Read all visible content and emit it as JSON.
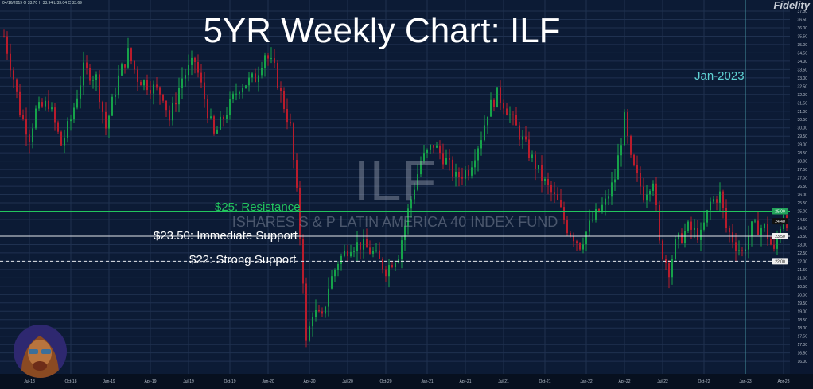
{
  "title": "5YR Weekly Chart: ILF",
  "brand": "Fidelity",
  "ohlc_readout": "04/16/2019  O 33.70  H 33.94  L 33.04  C 33.69",
  "watermark": {
    "symbol": "ILF",
    "name": "ISHARES S & P LATIN AMERICA 40 INDEX FUND"
  },
  "chart_data": {
    "type": "candlestick",
    "title": "5YR Weekly Chart: ILF",
    "interval": "weekly",
    "ylim": [
      15.5,
      37.2
    ],
    "yticks": [
      "37.00",
      "36.50",
      "36.00",
      "35.50",
      "35.00",
      "34.50",
      "34.00",
      "33.50",
      "33.00",
      "32.50",
      "32.00",
      "31.50",
      "31.00",
      "30.50",
      "30.00",
      "29.50",
      "29.00",
      "28.50",
      "28.00",
      "27.50",
      "27.00",
      "26.50",
      "26.00",
      "25.50",
      "25.00",
      "24.50",
      "24.00",
      "23.50",
      "23.00",
      "22.50",
      "22.00",
      "21.50",
      "21.00",
      "20.50",
      "20.00",
      "19.50",
      "19.00",
      "18.50",
      "18.00",
      "17.50",
      "17.00",
      "16.50",
      "16.00"
    ],
    "xticks": [
      {
        "label": "Jul-18",
        "week": 8
      },
      {
        "label": "Oct-18",
        "week": 21
      },
      {
        "label": "Jan-19",
        "week": 33
      },
      {
        "label": "Apr-19",
        "week": 46
      },
      {
        "label": "Jul-19",
        "week": 58
      },
      {
        "label": "Oct-19",
        "week": 71
      },
      {
        "label": "Jan-20",
        "week": 83
      },
      {
        "label": "Apr-20",
        "week": 96
      },
      {
        "label": "Jul-20",
        "week": 108
      },
      {
        "label": "Oct-20",
        "week": 120
      },
      {
        "label": "Jan-21",
        "week": 133
      },
      {
        "label": "Apr-21",
        "week": 145
      },
      {
        "label": "Jul-21",
        "week": 157
      },
      {
        "label": "Oct-21",
        "week": 170
      },
      {
        "label": "Jan-22",
        "week": 183
      },
      {
        "label": "Apr-22",
        "week": 195
      },
      {
        "label": "Jul-22",
        "week": 207
      },
      {
        "label": "Oct-22",
        "week": 220
      },
      {
        "label": "Jan-23",
        "week": 233
      },
      {
        "label": "Apr-23",
        "week": 245
      }
    ],
    "price_path": [
      [
        0,
        35.5
      ],
      [
        3,
        33
      ],
      [
        5,
        31
      ],
      [
        8,
        29.5
      ],
      [
        10,
        31
      ],
      [
        14,
        31.5
      ],
      [
        18,
        29
      ],
      [
        21,
        30.5
      ],
      [
        25,
        33.5
      ],
      [
        29,
        33
      ],
      [
        32,
        30
      ],
      [
        36,
        33
      ],
      [
        39,
        34.5
      ],
      [
        42,
        33
      ],
      [
        46,
        32.5
      ],
      [
        50,
        32
      ],
      [
        52,
        30.5
      ],
      [
        56,
        33
      ],
      [
        60,
        34
      ],
      [
        64,
        31
      ],
      [
        66,
        29.5
      ],
      [
        70,
        31
      ],
      [
        74,
        32.5
      ],
      [
        79,
        33
      ],
      [
        82,
        34.5
      ],
      [
        85,
        33.5
      ],
      [
        87,
        32
      ],
      [
        90,
        30
      ],
      [
        92,
        26
      ],
      [
        94,
        21
      ],
      [
        95,
        17
      ],
      [
        97,
        19
      ],
      [
        100,
        18.5
      ],
      [
        102,
        20.5
      ],
      [
        105,
        22
      ],
      [
        109,
        23
      ],
      [
        112,
        23
      ],
      [
        116,
        22.5
      ],
      [
        120,
        21.5
      ],
      [
        124,
        22.5
      ],
      [
        127,
        25
      ],
      [
        131,
        28
      ],
      [
        135,
        29
      ],
      [
        139,
        28
      ],
      [
        142,
        27
      ],
      [
        146,
        27.5
      ],
      [
        150,
        29.5
      ],
      [
        152,
        31
      ],
      [
        155,
        32
      ],
      [
        157,
        31.5
      ],
      [
        161,
        30
      ],
      [
        165,
        28.5
      ],
      [
        169,
        27
      ],
      [
        174,
        25.5
      ],
      [
        177,
        24
      ],
      [
        181,
        23
      ],
      [
        185,
        24.5
      ],
      [
        189,
        25.5
      ],
      [
        192,
        27
      ],
      [
        195,
        30.5
      ],
      [
        197,
        28
      ],
      [
        201,
        26
      ],
      [
        204,
        27
      ],
      [
        206,
        23
      ],
      [
        209,
        21.5
      ],
      [
        211,
        23
      ],
      [
        215,
        24
      ],
      [
        219,
        23.5
      ],
      [
        222,
        25.5
      ],
      [
        225,
        26
      ],
      [
        227,
        24
      ],
      [
        230,
        23
      ],
      [
        232,
        22.5
      ],
      [
        235,
        24
      ],
      [
        239,
        24
      ],
      [
        242,
        22.5
      ],
      [
        245,
        25
      ],
      [
        246,
        24.4
      ]
    ],
    "levels": [
      {
        "label": "$25: Resistance",
        "price": 25.0,
        "axis_label": "25.00",
        "color": "#22c55e",
        "style": "solid"
      },
      {
        "label": "$23.50: Immediate Support",
        "price": 23.5,
        "axis_label": "23.50",
        "color": "#e5e7eb",
        "style": "solid"
      },
      {
        "label": "$22: Strong Support",
        "price": 22.0,
        "axis_label": "22.00",
        "color": "#e5e7eb",
        "style": "dashed"
      }
    ],
    "last_price_label": "24.40",
    "vertical_marker": {
      "label": "Jan-2023",
      "week": 233,
      "color": "#5fd3d3"
    },
    "colors": {
      "up": "#16a34a",
      "down": "#b91c2c"
    }
  }
}
